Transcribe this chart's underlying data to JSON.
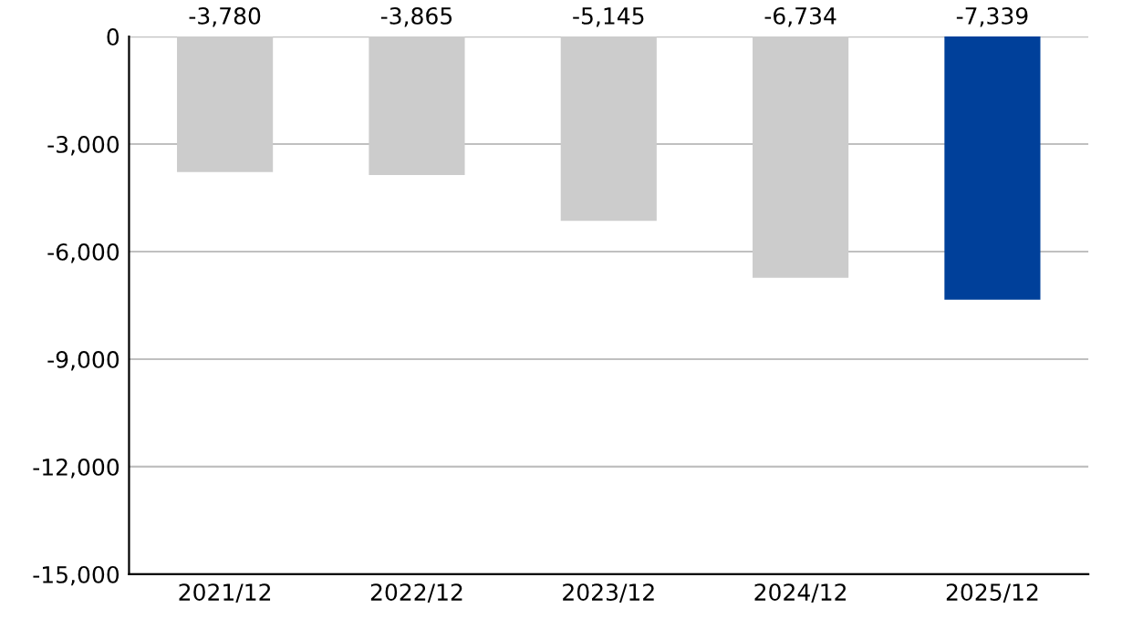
{
  "chart_data": {
    "type": "bar",
    "categories": [
      "2021/12",
      "2022/12",
      "2023/12",
      "2024/12",
      "2025/12"
    ],
    "values": [
      -3780,
      -3865,
      -5145,
      -6734,
      -7339
    ],
    "colors": [
      "#cccccc",
      "#cccccc",
      "#cccccc",
      "#cccccc",
      "#00409a"
    ],
    "value_labels": [
      "-3,780",
      "-3,865",
      "-5,145",
      "-6,734",
      "-7,339"
    ],
    "ylim": [
      -15000,
      0
    ],
    "yticks": [
      {
        "value": -15000,
        "label": "-15,000"
      },
      {
        "value": -12000,
        "label": "-12,000"
      },
      {
        "value": -9000,
        "label": "-9,000"
      },
      {
        "value": -6000,
        "label": "-6,000"
      },
      {
        "value": -3000,
        "label": "-3,000"
      },
      0
    ],
    "grid": "y"
  }
}
